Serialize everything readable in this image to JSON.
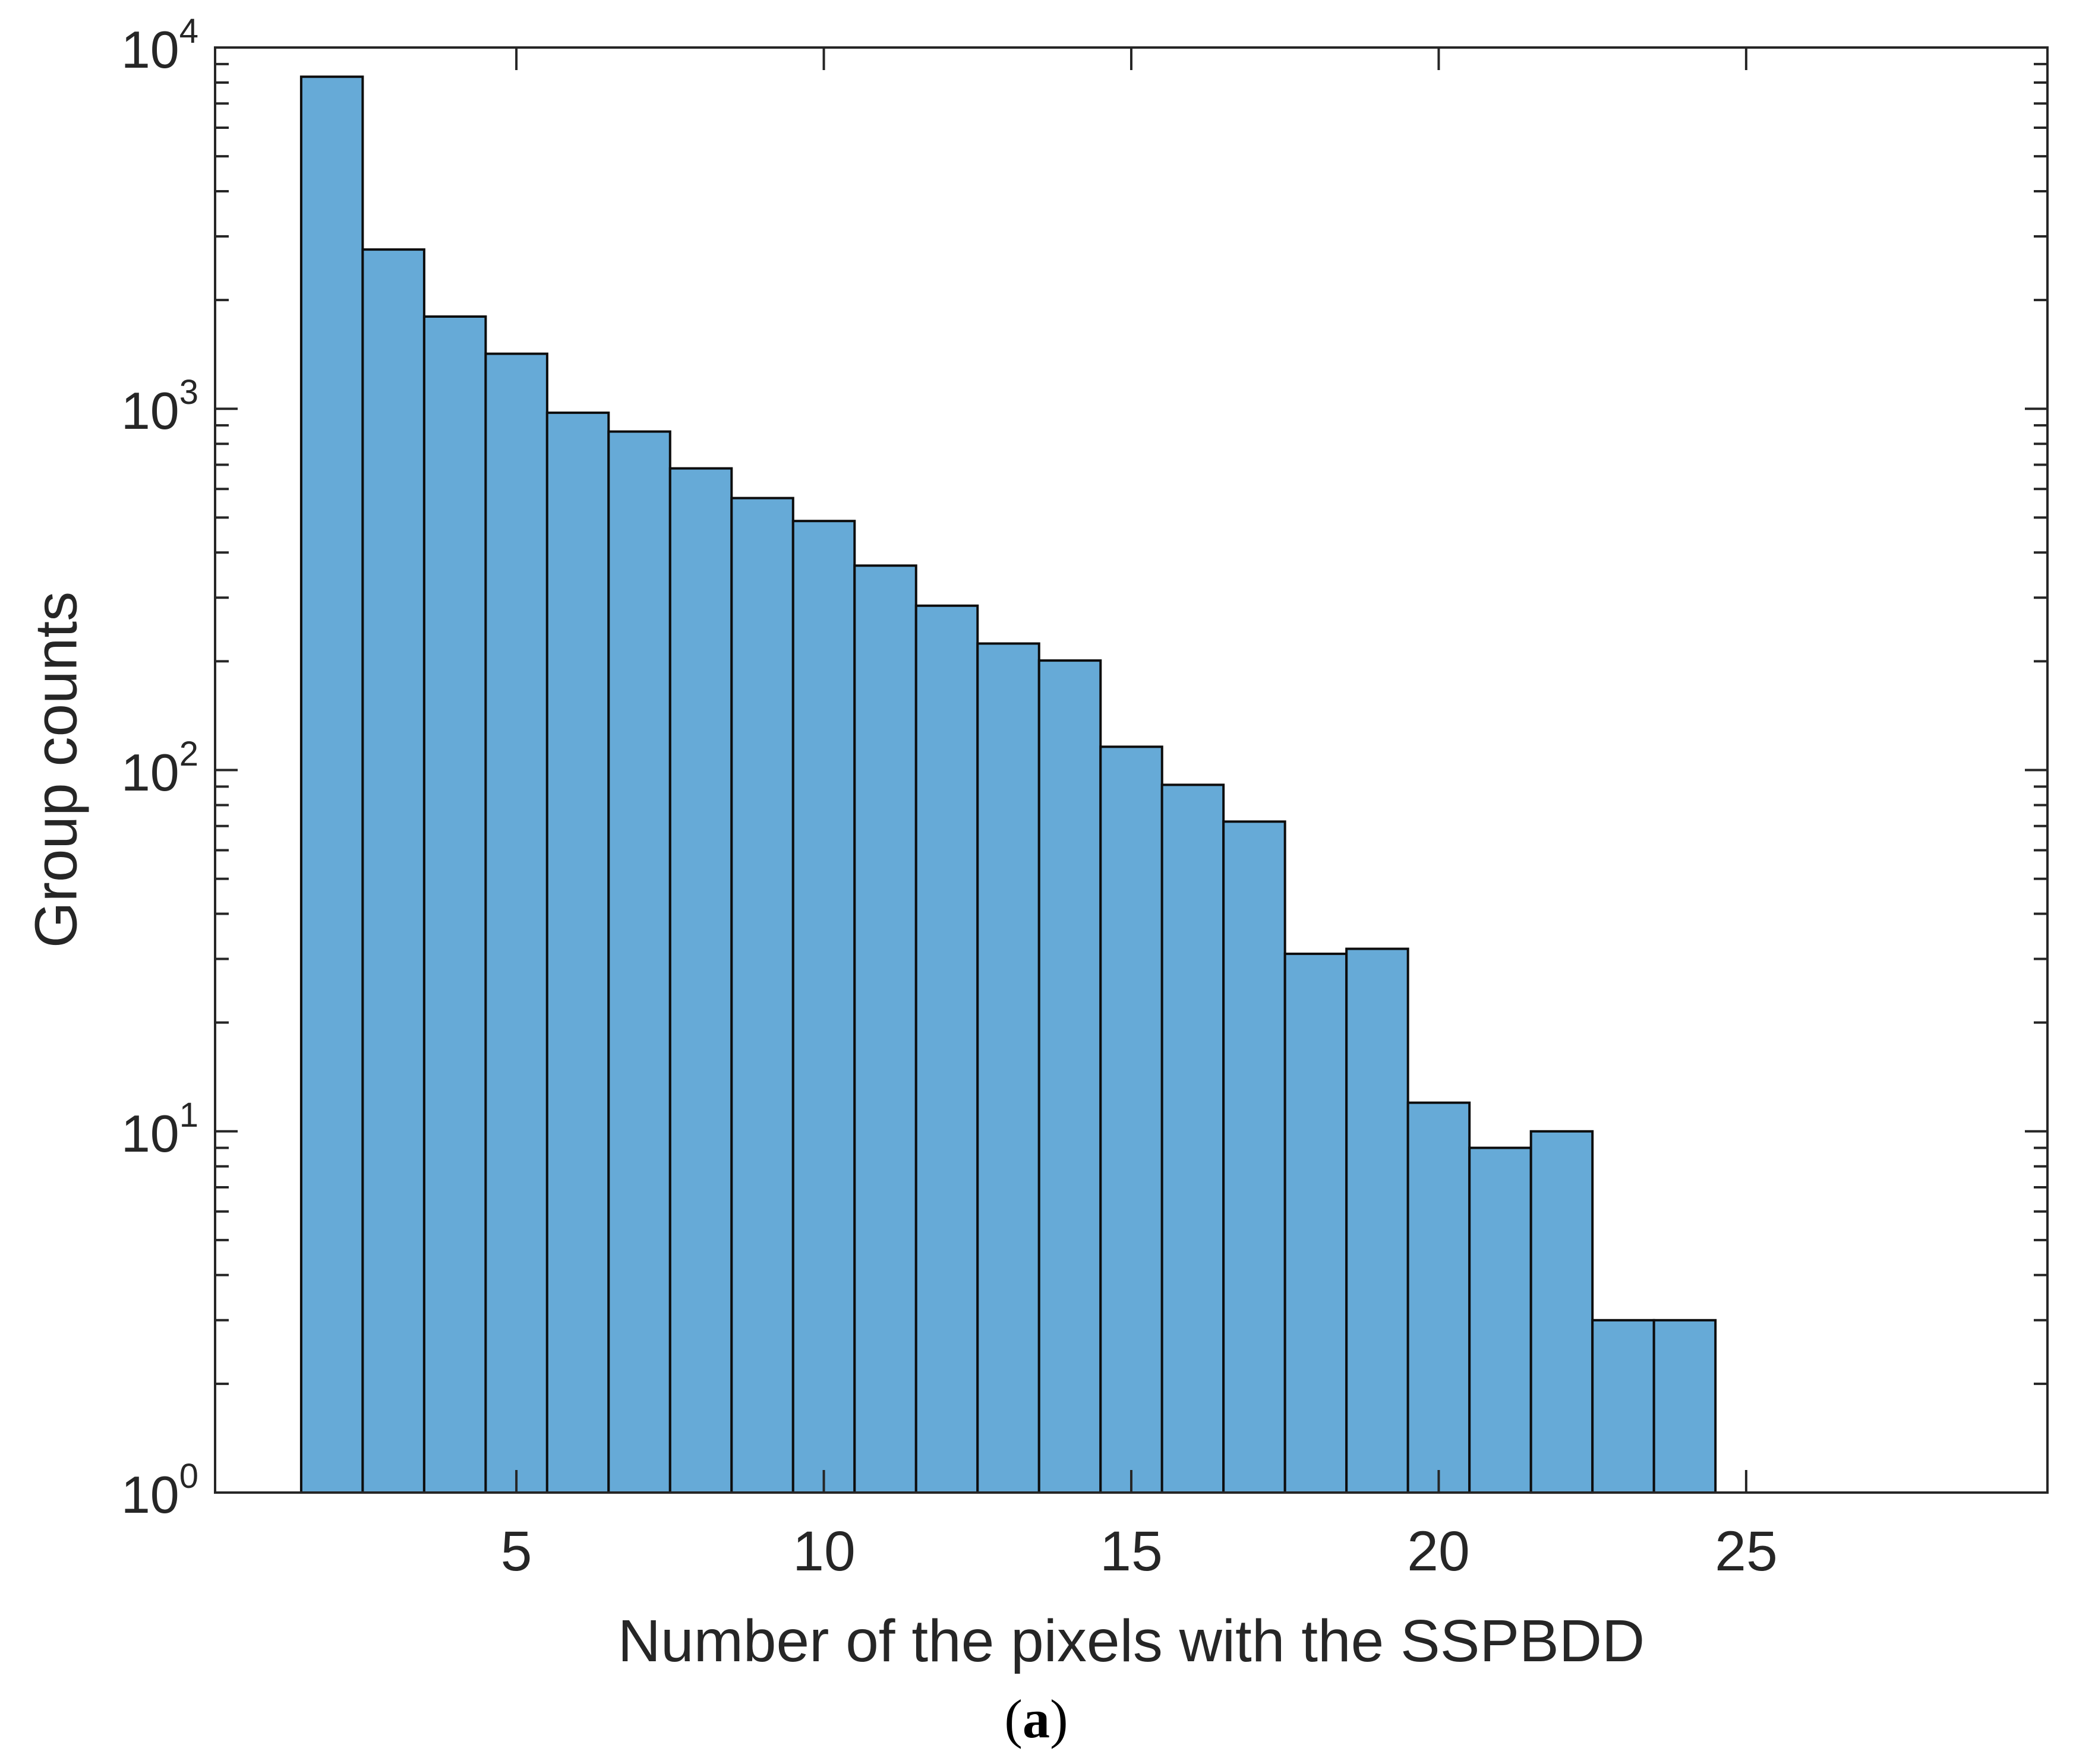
{
  "figure": {
    "caption_prefix": "(",
    "caption_letter": "a",
    "caption_suffix": ")"
  },
  "chart_data": {
    "type": "bar",
    "subtype": "histogram",
    "title": "",
    "xlabel": "Number of the pixels with the SSPBDD",
    "ylabel": "Group counts",
    "x": [
      2,
      3,
      4,
      5,
      6,
      7,
      8,
      9,
      10,
      11,
      12,
      13,
      14,
      15,
      16,
      17,
      18,
      19,
      20,
      21,
      22,
      23,
      24
    ],
    "values": [
      8300,
      2760,
      1800,
      1420,
      975,
      865,
      684,
      566,
      489,
      368,
      285,
      224,
      201,
      116,
      91,
      72,
      31,
      32,
      12,
      9,
      10,
      3,
      3
    ],
    "bar_width": 1.0,
    "xlim": [
      0.1,
      29.9
    ],
    "ylim": [
      1,
      10000
    ],
    "yscale": "log",
    "grid": false,
    "legend": null,
    "x_ticks": [
      5,
      10,
      15,
      20,
      25
    ],
    "x_tick_labels": [
      "5",
      "10",
      "15",
      "20",
      "25"
    ],
    "y_tick_base": "10",
    "y_tick_exponents": [
      "0",
      "1",
      "2",
      "3",
      "4"
    ],
    "y_minor_tick_mantissas": [
      2,
      3,
      4,
      5,
      6,
      7,
      8,
      9
    ],
    "colors": {
      "bar_fill": "#66AAD7",
      "bar_edge": "#0d0d0d",
      "axis_frame": "#262626",
      "tick": "#262626",
      "text": "#262626",
      "background": "#ffffff"
    }
  }
}
